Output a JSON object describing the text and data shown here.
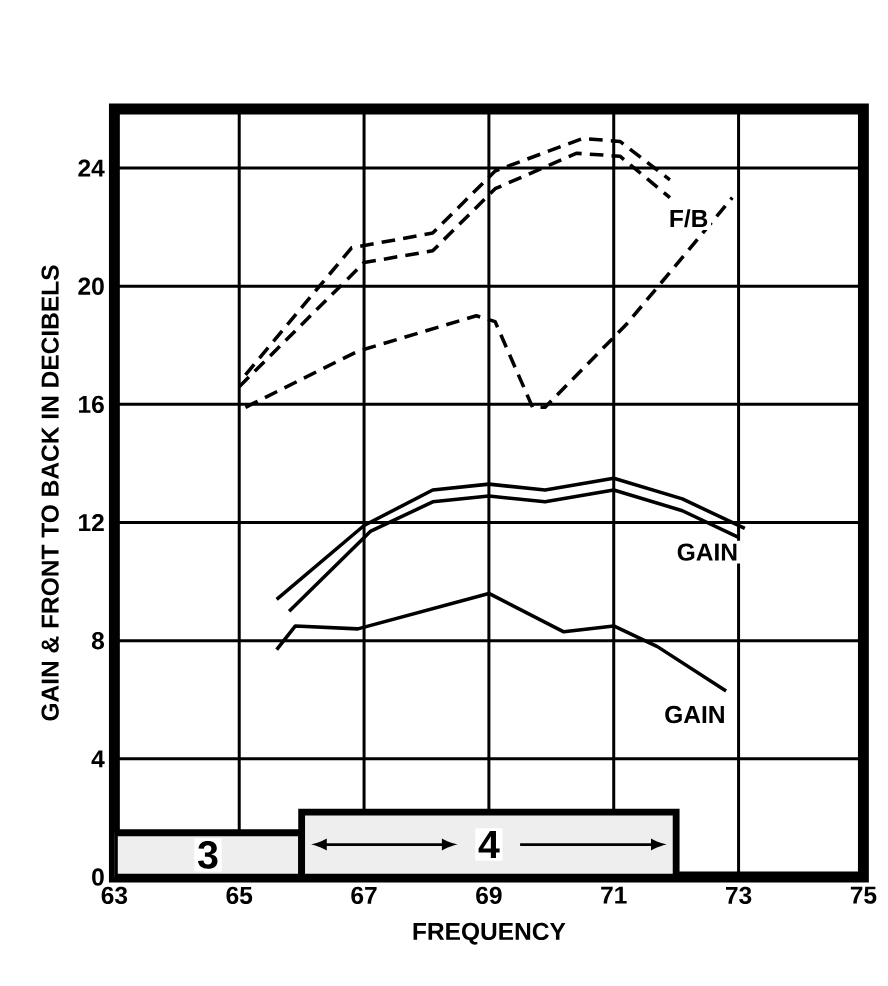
{
  "chart_data": {
    "type": "line",
    "xlabel": "FREQUENCY",
    "ylabel": "GAIN & FRONT TO BACK IN DECIBELS",
    "xlim": [
      63,
      75
    ],
    "ylim": [
      0,
      26
    ],
    "xticks": [
      63,
      65,
      67,
      69,
      71,
      73,
      75
    ],
    "yticks": [
      0,
      4,
      8,
      12,
      16,
      20,
      24
    ],
    "grid": true,
    "series": [
      {
        "color": "#000000",
        "line_style": "dashed",
        "x": [
          65.1,
          66.8,
          68.1,
          69.1,
          70.5,
          71.1,
          71.9
        ],
        "values": [
          17.0,
          21.3,
          21.8,
          23.9,
          25.0,
          24.9,
          23.6
        ]
      },
      {
        "color": "#000000",
        "line_style": "dashed",
        "x": [
          65.0,
          67.0,
          68.1,
          69.1,
          70.4,
          71.1,
          71.9
        ],
        "values": [
          16.6,
          20.8,
          21.2,
          23.3,
          24.5,
          24.4,
          23.0
        ]
      },
      {
        "color": "#000000",
        "line_style": "dashed",
        "x": [
          65.1,
          66.9,
          68.8,
          69.1,
          69.7,
          69.9,
          71.2,
          72.9
        ],
        "values": [
          15.9,
          17.8,
          19.0,
          18.8,
          15.9,
          15.9,
          18.7,
          23.0
        ]
      },
      {
        "color": "#000000",
        "line_style": "solid",
        "x": [
          65.6,
          67.0,
          68.1,
          69.0,
          69.9,
          71.0,
          72.1,
          73.1
        ],
        "values": [
          9.4,
          11.9,
          13.1,
          13.3,
          13.1,
          13.5,
          12.8,
          11.8
        ]
      },
      {
        "color": "#000000",
        "line_style": "solid",
        "x": [
          65.8,
          67.1,
          68.1,
          69.0,
          69.9,
          71.0,
          72.1,
          73.0
        ],
        "values": [
          9.0,
          11.7,
          12.7,
          12.9,
          12.7,
          13.1,
          12.4,
          11.5
        ]
      },
      {
        "color": "#000000",
        "line_style": "solid",
        "x": [
          65.6,
          65.9,
          66.9,
          69.0,
          70.2,
          71.0,
          71.7,
          72.8
        ],
        "values": [
          7.7,
          8.5,
          8.4,
          9.6,
          8.3,
          8.5,
          7.8,
          6.3
        ]
      }
    ],
    "bands": [
      {
        "axis": "x",
        "from": 63,
        "to": 66,
        "label": "3",
        "color": "#eeeeee"
      },
      {
        "axis": "x",
        "from": 66,
        "to": 72,
        "label": "4",
        "color": "#eeeeee"
      }
    ],
    "annotations": [
      {
        "text": "F/B",
        "x": 72.2,
        "y": 22.3
      },
      {
        "text": "GAIN",
        "x": 72.5,
        "y": 11.0
      },
      {
        "text": "GAIN",
        "x": 72.3,
        "y": 5.5
      }
    ]
  }
}
